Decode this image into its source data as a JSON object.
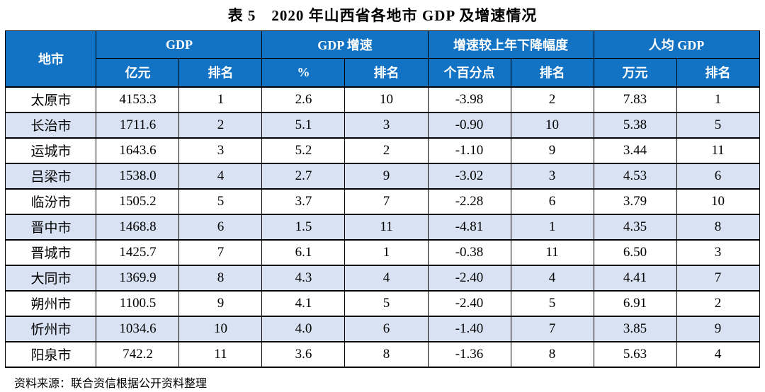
{
  "title": "表 5　2020 年山西省各地市 GDP 及增速情况",
  "source_note": "资料来源：联合资信根据公开资料整理",
  "colors": {
    "header_bg": "#1272C3",
    "header_text": "#FFFFFF",
    "row_alt_bg": "#D9E2F2",
    "row_bg": "#FFFFFF",
    "border": "#000000"
  },
  "table": {
    "column_groups": [
      {
        "label": "地市"
      },
      {
        "label": "GDP"
      },
      {
        "label": "GDP 增速"
      },
      {
        "label": "增速较上年下降幅度"
      },
      {
        "label": "人均 GDP"
      }
    ],
    "sub_headers": [
      "亿元",
      "排名",
      "%",
      "排名",
      "个百分点",
      "排名",
      "万元",
      "排名"
    ],
    "rows": [
      [
        "太原市",
        "4153.3",
        "1",
        "2.6",
        "10",
        "-3.98",
        "2",
        "7.83",
        "1"
      ],
      [
        "长治市",
        "1711.6",
        "2",
        "5.1",
        "3",
        "-0.90",
        "10",
        "5.38",
        "5"
      ],
      [
        "运城市",
        "1643.6",
        "3",
        "5.2",
        "2",
        "-1.10",
        "9",
        "3.44",
        "11"
      ],
      [
        "吕梁市",
        "1538.0",
        "4",
        "2.7",
        "9",
        "-3.02",
        "3",
        "4.53",
        "6"
      ],
      [
        "临汾市",
        "1505.2",
        "5",
        "3.7",
        "7",
        "-2.28",
        "6",
        "3.79",
        "10"
      ],
      [
        "晋中市",
        "1468.8",
        "6",
        "1.5",
        "11",
        "-4.81",
        "1",
        "4.35",
        "8"
      ],
      [
        "晋城市",
        "1425.7",
        "7",
        "6.1",
        "1",
        "-0.38",
        "11",
        "6.50",
        "3"
      ],
      [
        "大同市",
        "1369.9",
        "8",
        "4.3",
        "4",
        "-2.40",
        "4",
        "4.41",
        "7"
      ],
      [
        "朔州市",
        "1100.5",
        "9",
        "4.1",
        "5",
        "-2.40",
        "5",
        "6.91",
        "2"
      ],
      [
        "忻州市",
        "1034.6",
        "10",
        "4.0",
        "6",
        "-1.40",
        "7",
        "3.85",
        "9"
      ],
      [
        "阳泉市",
        "742.2",
        "11",
        "3.6",
        "8",
        "-1.36",
        "8",
        "5.63",
        "4"
      ]
    ]
  }
}
